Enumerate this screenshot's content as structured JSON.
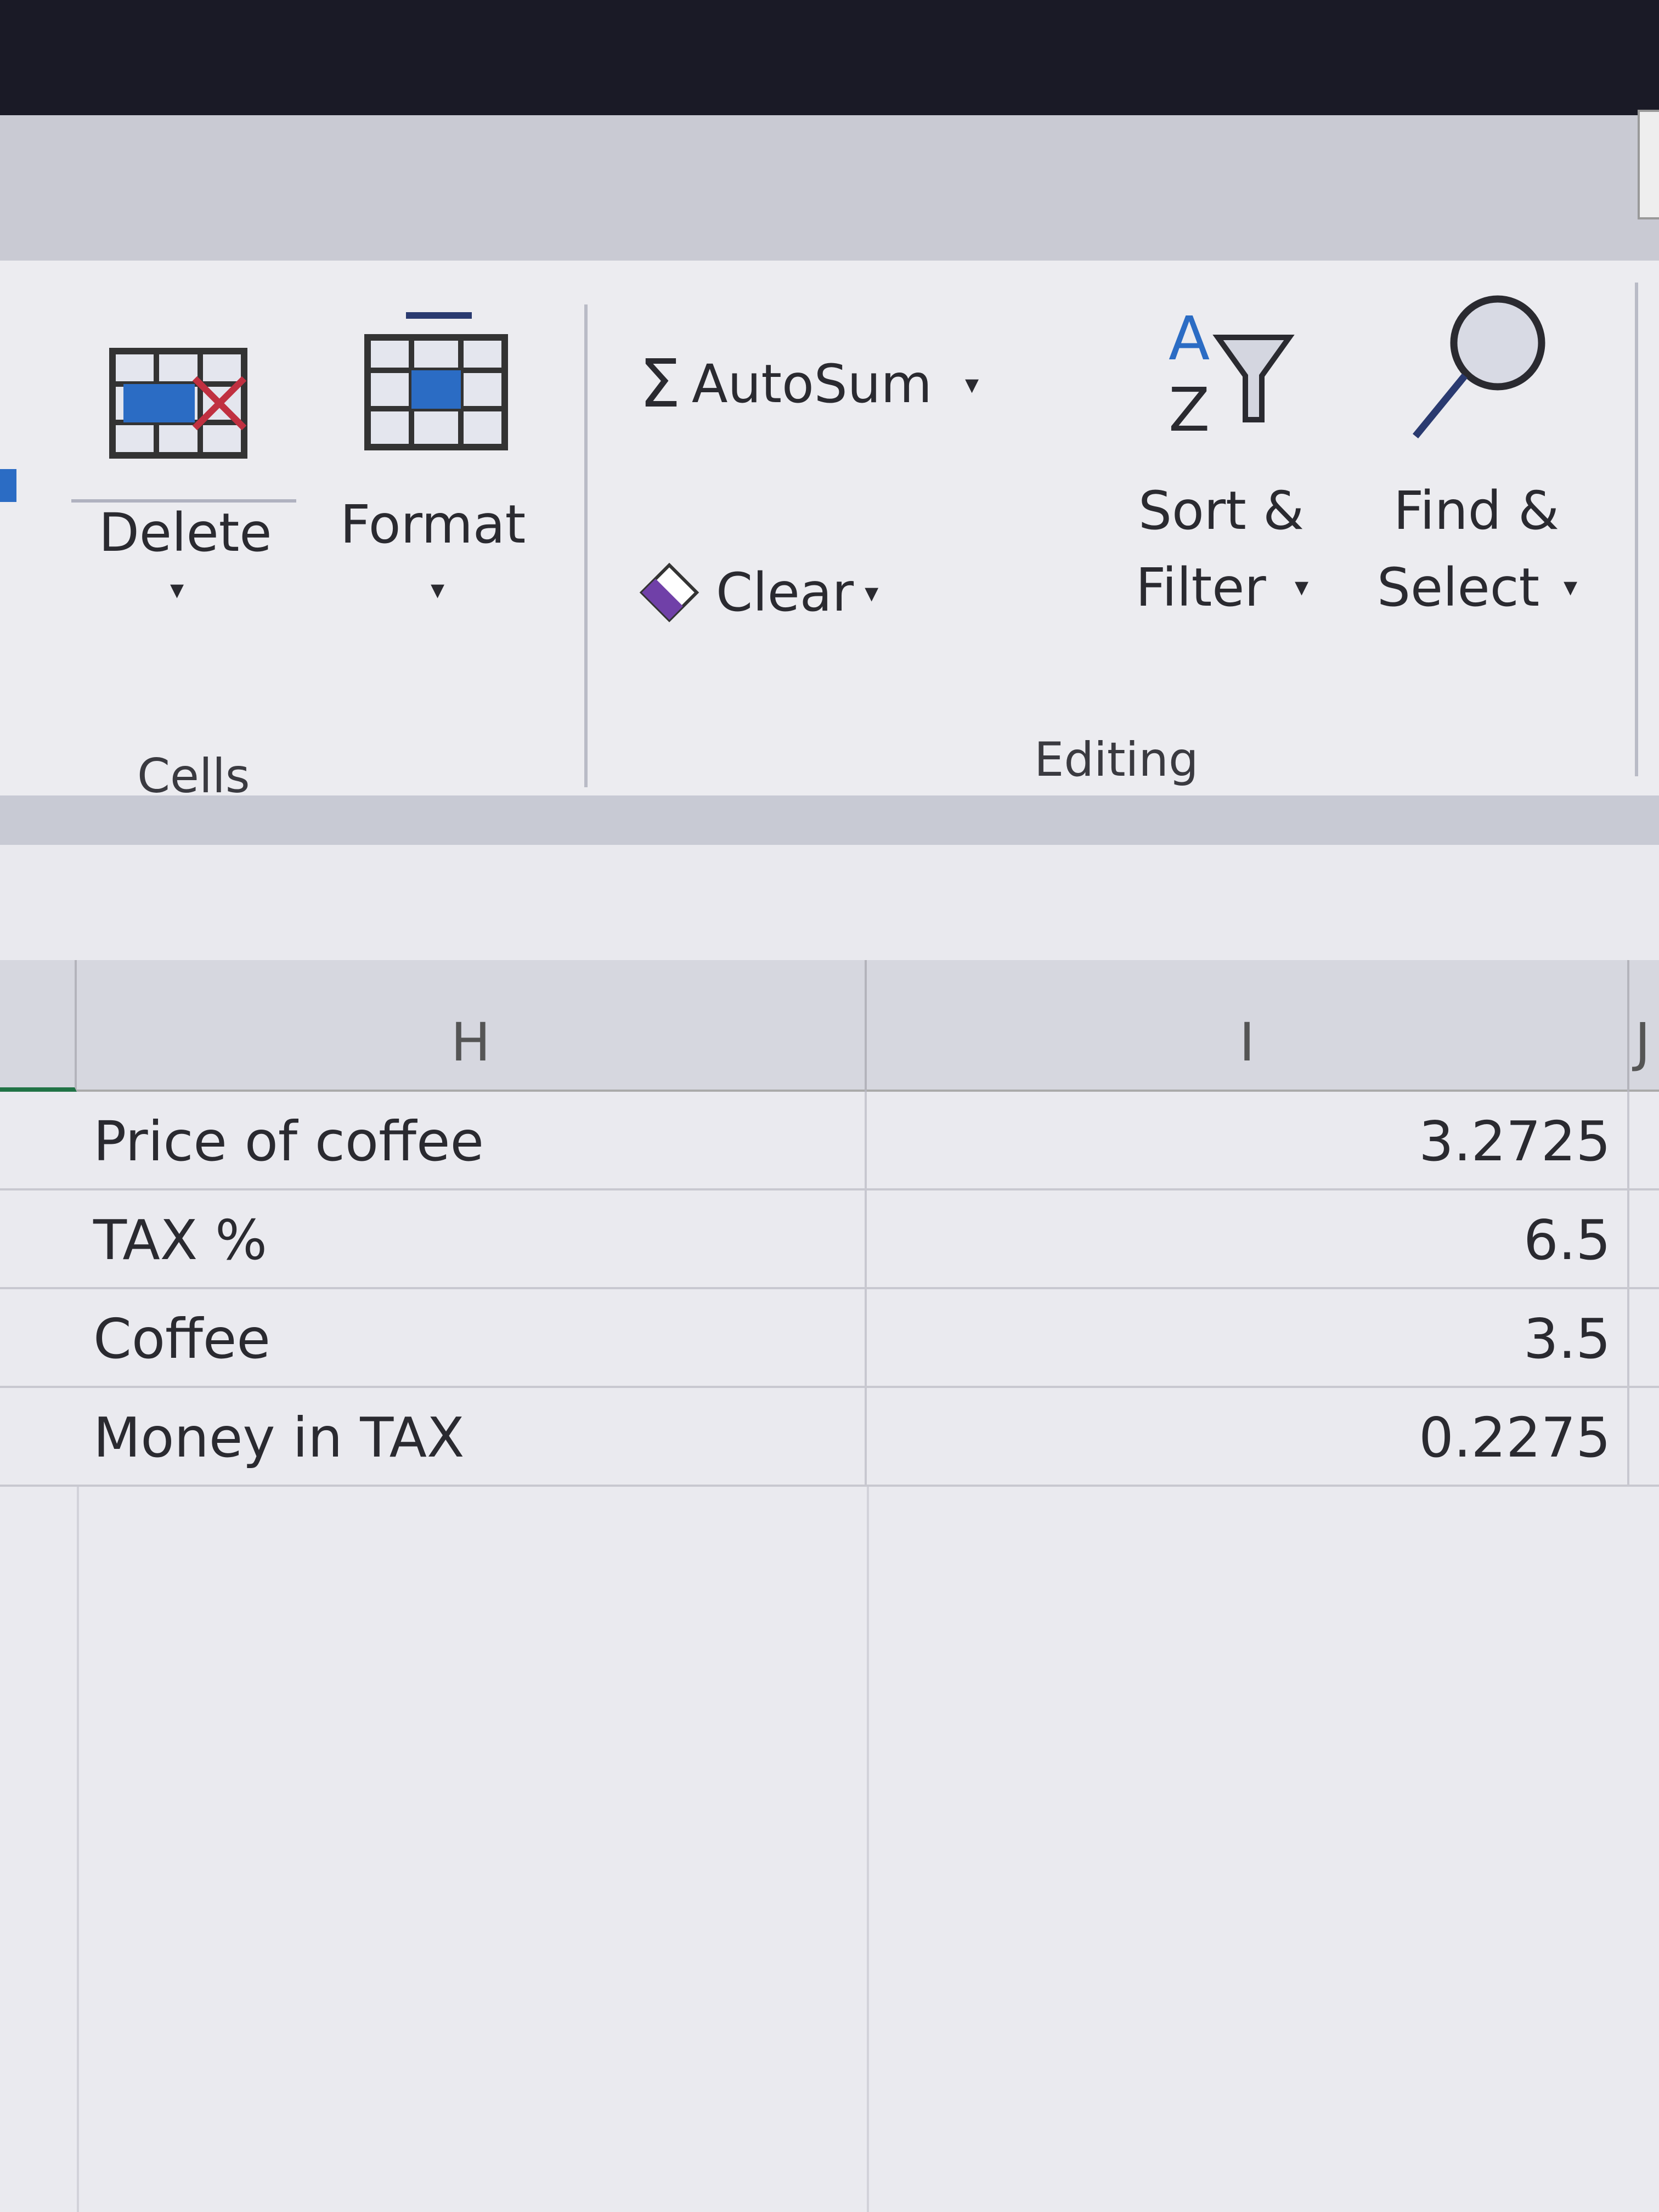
{
  "ribbon": {
    "cells_group": {
      "label": "Cells",
      "delete_label": "Delete",
      "format_label": "Format"
    },
    "editing_group": {
      "label": "Editing",
      "autosum_label": "AutoSum",
      "clear_label": "Clear",
      "sort_filter_line1": "Sort &",
      "sort_filter_line2": "Filter",
      "find_select_line1": "Find &",
      "find_select_line2": "Select"
    },
    "icons": [
      "delete-cells-icon",
      "format-cells-icon",
      "sigma-icon",
      "eraser-icon",
      "sort-filter-icon",
      "magnifier-icon"
    ],
    "accent_color": "#2b6cc4"
  },
  "sheet": {
    "columns": [
      "H",
      "I",
      "J"
    ],
    "selected_column_indicator_color": "#217346",
    "rows": [
      {
        "label": "Price of coffee",
        "value": "3.2725"
      },
      {
        "label": "TAX %",
        "value": "6.5"
      },
      {
        "label": "Coffee",
        "value": "3.5"
      },
      {
        "label": "Money in TAX",
        "value": "0.2275"
      }
    ]
  }
}
